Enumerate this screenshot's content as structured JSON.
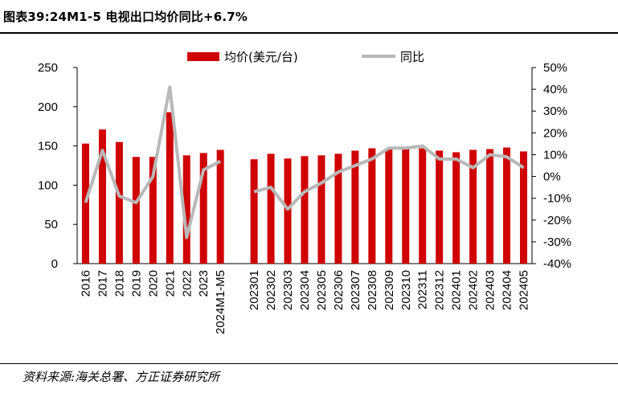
{
  "title": "图表39:24M1-5 电视出口均价同比+6.7%",
  "source": "资料来源:海关总署、方正证券研究所",
  "colors": {
    "bar": "#d00000",
    "line": "#b8b8b8",
    "axis": "#000000"
  },
  "chart_data": {
    "type": "bar+line",
    "categories": [
      "2016",
      "2017",
      "2018",
      "2019",
      "2020",
      "2021",
      "2022",
      "2023",
      "2024M1-M5",
      "",
      "202301",
      "202302",
      "202303",
      "202304",
      "202305",
      "202306",
      "202307",
      "202308",
      "202309",
      "202310",
      "202311",
      "202312",
      "202401",
      "202402",
      "202403",
      "202404",
      "202405"
    ],
    "series": [
      {
        "name": "均价(美元/台)",
        "axis": "left",
        "kind": "bar",
        "values": [
          153,
          171,
          155,
          136,
          136,
          193,
          138,
          141,
          145,
          null,
          133,
          140,
          134,
          137,
          138,
          140,
          144,
          147,
          147,
          146,
          147,
          144,
          142,
          145,
          146,
          148,
          143
        ]
      },
      {
        "name": "同比",
        "axis": "right",
        "kind": "line",
        "values": [
          -12,
          12,
          -9,
          -12,
          0,
          41,
          -28,
          3,
          7,
          null,
          -7,
          -5,
          -15,
          -7,
          -3,
          2,
          5,
          8,
          13,
          13,
          14,
          8,
          8,
          4,
          10,
          9,
          4
        ]
      }
    ],
    "y_left": {
      "min": 0,
      "max": 250,
      "ticks": [
        0,
        50,
        100,
        150,
        200,
        250
      ]
    },
    "y_right": {
      "min": -40,
      "max": 50,
      "ticks": [
        -40,
        -30,
        -20,
        -10,
        0,
        10,
        20,
        30,
        40,
        50
      ],
      "tick_labels": [
        "-40%",
        "-30%",
        "-20%",
        "-10%",
        "0%",
        "10%",
        "20%",
        "30%",
        "40%",
        "50%"
      ]
    },
    "legend": [
      "均价(美元/台)",
      "同比"
    ],
    "legend_position": "top"
  }
}
